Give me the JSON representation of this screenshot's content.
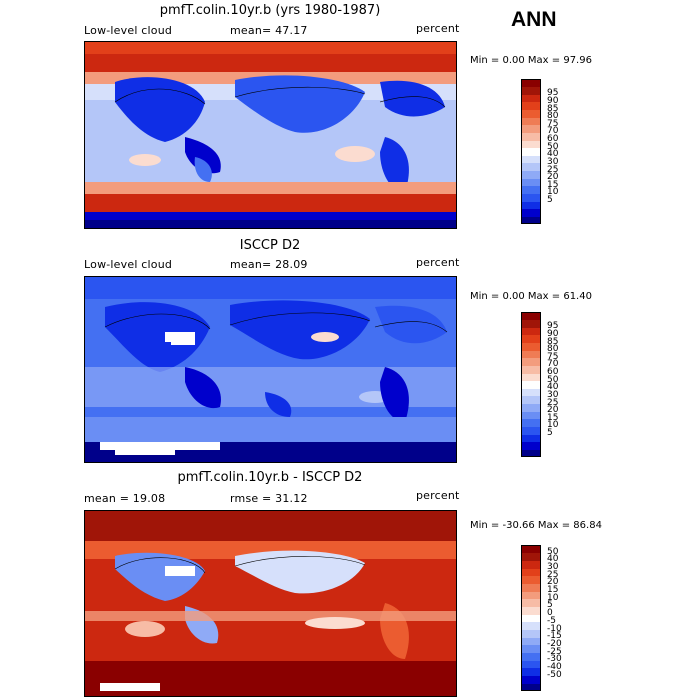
{
  "season": "ANN",
  "panels": [
    {
      "title": "pmfT.colin.10yr.b (yrs 1980-1987)",
      "left_label": "Low-level cloud",
      "mid_label": "mean=  47.17",
      "right_label": "percent",
      "minmax": "Min =    0.00 Max =  97.96",
      "colorbar": {
        "colors": [
          "#00008a",
          "#0000cc",
          "#0f2ee6",
          "#2b55f0",
          "#4470f2",
          "#6a8ef4",
          "#8faaf6",
          "#b4c6f8",
          "#d6e0fb",
          "#ffffff",
          "#fbdcd0",
          "#f7bca6",
          "#f39c7d",
          "#ef7c55",
          "#eb5c30",
          "#e2401a",
          "#cc2810",
          "#a01508",
          "#8a0000"
        ],
        "labels": [
          "5",
          "10",
          "15",
          "20",
          "25",
          "30",
          "40",
          "50",
          "60",
          "70",
          "75",
          "80",
          "85",
          "90",
          "95"
        ]
      }
    },
    {
      "title": "ISCCP D2",
      "left_label": "Low-level cloud",
      "mid_label": "mean=  28.09",
      "right_label": "percent",
      "minmax": "Min =    0.00 Max =  61.40",
      "colorbar": {
        "colors": [
          "#00008a",
          "#0000cc",
          "#0f2ee6",
          "#2b55f0",
          "#4470f2",
          "#6a8ef4",
          "#8faaf6",
          "#b4c6f8",
          "#d6e0fb",
          "#ffffff",
          "#fbdcd0",
          "#f7bca6",
          "#f39c7d",
          "#ef7c55",
          "#eb5c30",
          "#e2401a",
          "#cc2810",
          "#a01508",
          "#8a0000"
        ],
        "labels": [
          "5",
          "10",
          "15",
          "20",
          "25",
          "30",
          "40",
          "50",
          "60",
          "70",
          "75",
          "80",
          "85",
          "90",
          "95"
        ]
      }
    },
    {
      "title": "pmfT.colin.10yr.b - ISCCP D2",
      "left_label": "mean =  19.08",
      "mid_label": "rmse =  31.12",
      "right_label": "percent",
      "minmax": "Min = -30.66 Max =  86.84",
      "colorbar": {
        "colors": [
          "#00008a",
          "#0000cc",
          "#0f2ee6",
          "#2b55f0",
          "#4470f2",
          "#6a8ef4",
          "#8faaf6",
          "#b4c6f8",
          "#d6e0fb",
          "#ffffff",
          "#fbdcd0",
          "#f7bca6",
          "#f39c7d",
          "#ef7c55",
          "#eb5c30",
          "#e2401a",
          "#cc2810",
          "#a01508",
          "#8a0000"
        ],
        "labels": [
          "-50",
          "-40",
          "-30",
          "-25",
          "-20",
          "-15",
          "-10",
          "-5",
          "0",
          "5",
          "10",
          "15",
          "20",
          "25",
          "30",
          "40",
          "50"
        ]
      }
    }
  ],
  "chart_data": [
    {
      "type": "heatmap",
      "title": "pmfT.colin.10yr.b (yrs 1980-1987)",
      "variable": "Low-level cloud",
      "units": "percent",
      "mean": 47.17,
      "min": 0.0,
      "max": 97.96,
      "contour_levels": [
        5,
        10,
        15,
        20,
        25,
        30,
        40,
        50,
        60,
        70,
        75,
        80,
        85,
        90,
        95
      ]
    },
    {
      "type": "heatmap",
      "title": "ISCCP D2",
      "variable": "Low-level cloud",
      "units": "percent",
      "mean": 28.09,
      "min": 0.0,
      "max": 61.4,
      "contour_levels": [
        5,
        10,
        15,
        20,
        25,
        30,
        40,
        50,
        60,
        70,
        75,
        80,
        85,
        90,
        95
      ]
    },
    {
      "type": "heatmap",
      "title": "pmfT.colin.10yr.b - ISCCP D2",
      "units": "percent",
      "mean": 19.08,
      "rmse": 31.12,
      "min": -30.66,
      "max": 86.84,
      "contour_levels": [
        -50,
        -40,
        -30,
        -25,
        -20,
        -15,
        -10,
        -5,
        0,
        5,
        10,
        15,
        20,
        25,
        30,
        40,
        50
      ]
    }
  ]
}
